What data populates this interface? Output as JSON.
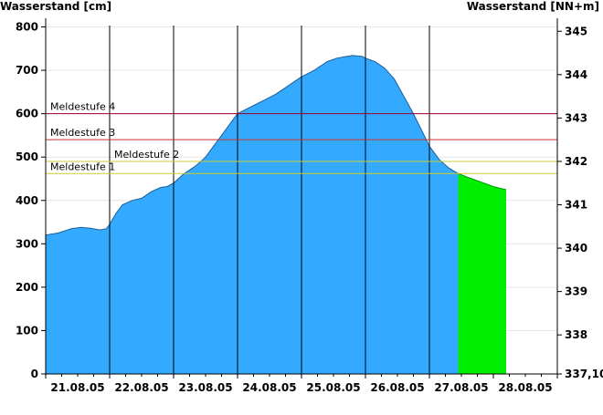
{
  "chart_data": {
    "type": "area",
    "y_left_label": "Wasserstand [cm]",
    "y_right_label": "Wasserstand [NN+m]",
    "ylim_left": [
      0,
      820
    ],
    "ylim_right": [
      337.1,
      345.3
    ],
    "x_categories": [
      "21.08.05",
      "22.08.05",
      "23.08.05",
      "24.08.05",
      "25.08.05",
      "26.08.05",
      "27.08.05",
      "28.08.05"
    ],
    "x_range_days": [
      0,
      8
    ],
    "y_left_ticks": [
      "0",
      "100",
      "200",
      "300",
      "400",
      "500",
      "600",
      "700",
      "800"
    ],
    "y_right_ticks": [
      "337,10",
      "338",
      "339",
      "340",
      "341",
      "342",
      "343",
      "344",
      "345"
    ],
    "y_right_tick_values": [
      337.1,
      338,
      339,
      340,
      341,
      342,
      343,
      344,
      345
    ],
    "day_separators_at": [
      1,
      2,
      3,
      4,
      5,
      6
    ],
    "thresholds": [
      {
        "name": "Meldestufe 4",
        "value": 600,
        "color": "#990033"
      },
      {
        "name": "Meldestufe 3",
        "value": 540,
        "color": "#cc3333"
      },
      {
        "name": "Meldestufe 2",
        "value": 490,
        "color": "#cccc33"
      },
      {
        "name": "Meldestufe 1",
        "value": 462,
        "color": "#cccc33"
      }
    ],
    "series": [
      {
        "color": "#33aaff",
        "points": [
          [
            0.0,
            320
          ],
          [
            0.2,
            325
          ],
          [
            0.4,
            335
          ],
          [
            0.55,
            338
          ],
          [
            0.7,
            336
          ],
          [
            0.85,
            332
          ],
          [
            0.95,
            335
          ],
          [
            1.0,
            345
          ],
          [
            1.1,
            370
          ],
          [
            1.2,
            390
          ],
          [
            1.35,
            400
          ],
          [
            1.5,
            405
          ],
          [
            1.65,
            420
          ],
          [
            1.8,
            430
          ],
          [
            1.9,
            432
          ],
          [
            2.0,
            440
          ],
          [
            2.15,
            460
          ],
          [
            2.35,
            480
          ],
          [
            2.5,
            500
          ],
          [
            2.65,
            530
          ],
          [
            2.8,
            560
          ],
          [
            2.9,
            580
          ],
          [
            3.0,
            600
          ],
          [
            3.2,
            615
          ],
          [
            3.4,
            630
          ],
          [
            3.6,
            645
          ],
          [
            3.8,
            665
          ],
          [
            4.0,
            685
          ],
          [
            4.2,
            700
          ],
          [
            4.4,
            720
          ],
          [
            4.55,
            728
          ],
          [
            4.7,
            732
          ],
          [
            4.8,
            734
          ],
          [
            4.95,
            732
          ],
          [
            5.0,
            728
          ],
          [
            5.15,
            720
          ],
          [
            5.3,
            705
          ],
          [
            5.45,
            680
          ],
          [
            5.6,
            640
          ],
          [
            5.75,
            600
          ],
          [
            5.9,
            555
          ],
          [
            6.0,
            525
          ],
          [
            6.15,
            495
          ],
          [
            6.3,
            475
          ],
          [
            6.45,
            462
          ],
          [
            6.57,
            455
          ]
        ]
      },
      {
        "color": "#00ee00",
        "points": [
          [
            6.45,
            462
          ],
          [
            6.57,
            455
          ],
          [
            6.7,
            448
          ],
          [
            6.85,
            440
          ],
          [
            7.0,
            432
          ],
          [
            7.1,
            428
          ],
          [
            7.2,
            425
          ]
        ]
      }
    ],
    "grid": true
  }
}
